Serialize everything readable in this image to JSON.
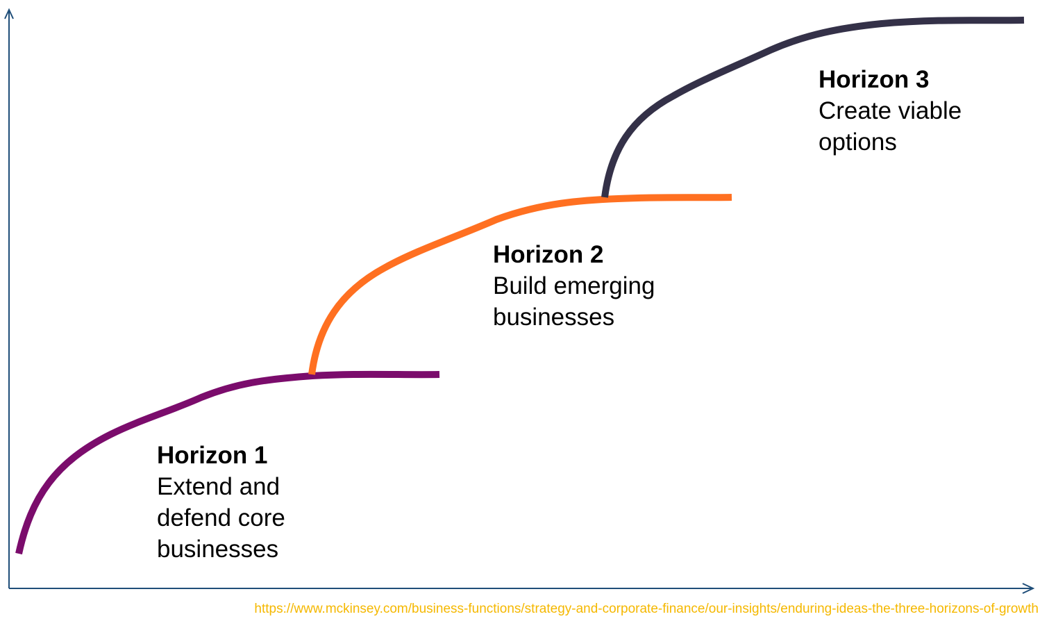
{
  "colors": {
    "axis": "#1f4e79",
    "horizon_1": "#7b0c6c",
    "horizon_2": "#ff7021",
    "horizon_3": "#343148",
    "source": "#f5b800"
  },
  "horizons": [
    {
      "title": "Horizon 1",
      "lines": [
        "Extend and",
        "defend core",
        "businesses"
      ]
    },
    {
      "title": "Horizon 2",
      "lines": [
        "Build emerging",
        "businesses"
      ]
    },
    {
      "title": "Horizon 3",
      "lines": [
        "Create viable",
        "options"
      ]
    }
  ],
  "source_url": "https://www.mckinsey.com/business-functions/strategy-and-corporate-finance/our-insights/enduring-ideas-the-three-horizons-of-growth"
}
